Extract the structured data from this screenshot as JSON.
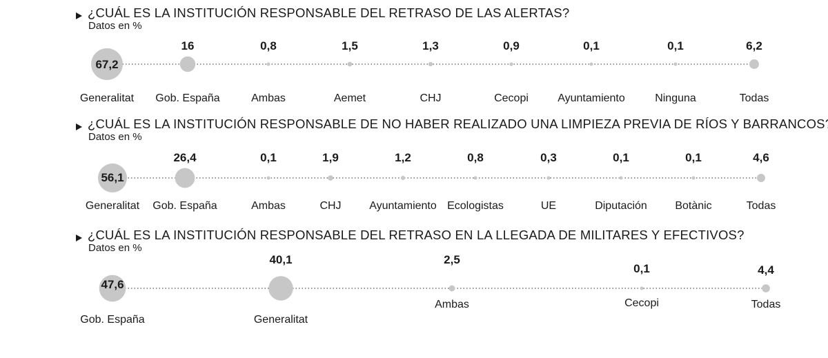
{
  "colors": {
    "bubble": "#c8c7c7",
    "text": "#1a1a1a",
    "dots": "#555555"
  },
  "sections": [
    {
      "title": "¿CUÁL ES LA INSTITUCIÓN RESPONSABLE DEL RETRASO DE LAS ALERTAS?",
      "subtitle": "Datos en %"
    },
    {
      "title": "¿CUÁL ES LA INSTITUCIÓN RESPONSABLE DE NO HABER REALIZADO UNA LIMPIEZA PREVIA DE RÍOS Y BARRANCOS?",
      "subtitle": "Datos en %"
    },
    {
      "title": "¿CUÁL ES LA INSTITUCIÓN RESPONSABLE DEL RETRASO EN LA LLEGADA DE MILITARES Y EFECTIVOS?",
      "subtitle": "Datos en %"
    }
  ],
  "chart_data": [
    {
      "type": "bubble",
      "title": "¿CUÁL ES LA INSTITUCIÓN RESPONSABLE DEL RETRASO DE LAS ALERTAS?",
      "subtitle": "Datos en %",
      "categories": [
        "Generalitat",
        "Gob. España",
        "Ambas",
        "Aemet",
        "CHJ",
        "Cecopi",
        "Ayuntamiento",
        "Ninguna",
        "Todas"
      ],
      "values": [
        67.2,
        16,
        0.8,
        1.5,
        1.3,
        0.9,
        0.1,
        0.1,
        6.2
      ],
      "labels": [
        "67,2",
        "16",
        "0,8",
        "1,5",
        "1,3",
        "0,9",
        "0,1",
        "0,1",
        "6,2"
      ]
    },
    {
      "type": "bubble",
      "title": "¿CUÁL ES LA INSTITUCIÓN RESPONSABLE DE NO HABER REALIZADO UNA LIMPIEZA PREVIA DE RÍOS Y BARRANCOS?",
      "subtitle": "Datos en %",
      "categories": [
        "Generalitat",
        "Gob. España",
        "Ambas",
        "CHJ",
        "Ayuntamiento",
        "Ecologistas",
        "UE",
        "Diputación",
        "Botànic",
        "Todas"
      ],
      "values": [
        56.1,
        26.4,
        0.1,
        1.9,
        1.2,
        0.8,
        0.3,
        0.1,
        0.1,
        4.6
      ],
      "labels": [
        "56,1",
        "26,4",
        "0,1",
        "1,9",
        "1,2",
        "0,8",
        "0,3",
        "0,1",
        "0,1",
        "4,6"
      ]
    },
    {
      "type": "bubble",
      "title": "¿CUÁL ES LA INSTITUCIÓN RESPONSABLE DEL RETRASO EN LA LLEGADA DE MILITARES Y EFECTIVOS?",
      "subtitle": "Datos en %",
      "categories": [
        "Gob. España",
        "Generalitat",
        "Ambas",
        "Cecopi",
        "Todas"
      ],
      "values": [
        47.6,
        40.1,
        2.5,
        0.1,
        4.4
      ],
      "labels": [
        "47,6",
        "40,1",
        "2,5",
        "0,1",
        "4,4"
      ]
    }
  ]
}
